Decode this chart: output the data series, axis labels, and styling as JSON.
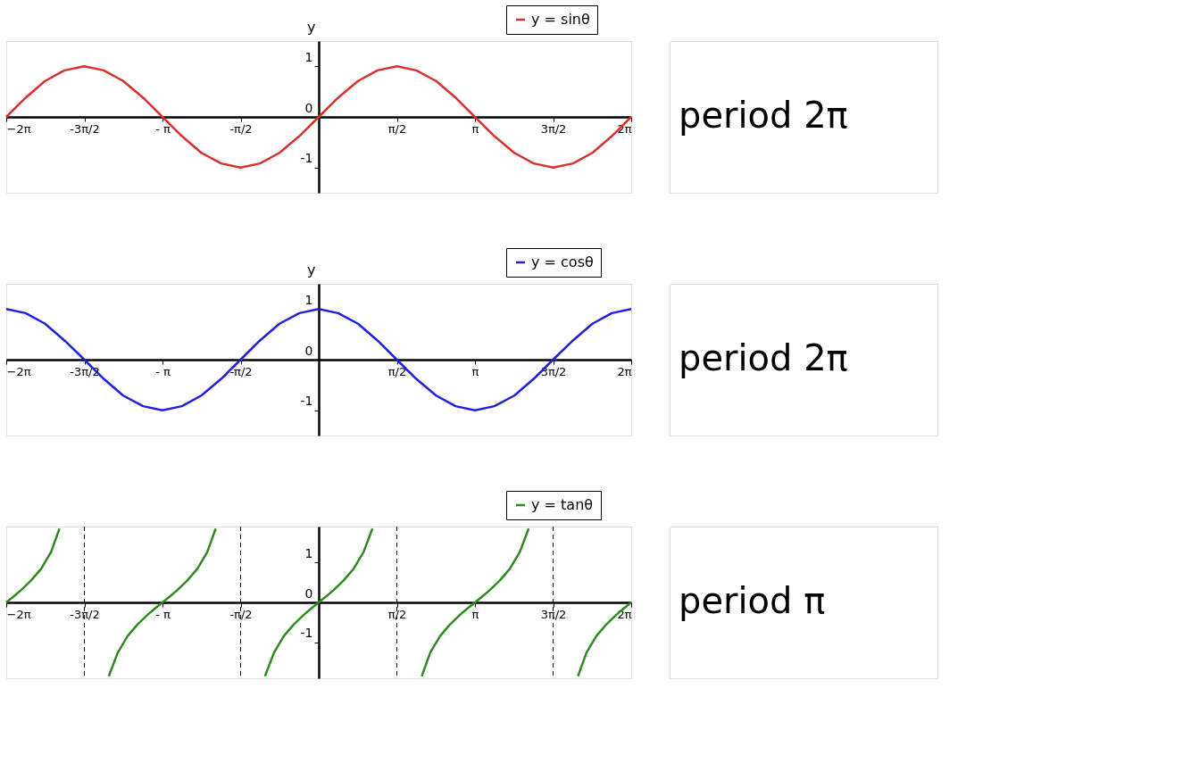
{
  "chart_data": [
    {
      "type": "line",
      "ylabel": "y",
      "legend": "top right",
      "grid": false,
      "marker": "none",
      "line_style": "solid",
      "xlim": [
        -6.28,
        6.28
      ],
      "ylim": [
        -1.5,
        1.5
      ],
      "yticks": [
        -1,
        0,
        1
      ],
      "xticks": [
        {
          "value": -6.28,
          "label": "−2π"
        },
        {
          "value": -4.71,
          "label": "-3π/2"
        },
        {
          "value": -3.14,
          "label": "- π"
        },
        {
          "value": -1.57,
          "label": "-π/2"
        },
        {
          "value": 1.57,
          "label": "π/2"
        },
        {
          "value": 3.14,
          "label": "π"
        },
        {
          "value": 4.71,
          "label": "3π/2"
        },
        {
          "value": 6.28,
          "label": "2π"
        }
      ],
      "x": [
        -6.28,
        -5.89,
        -5.5,
        -5.11,
        -4.71,
        -4.32,
        -3.93,
        -3.53,
        -3.14,
        -2.75,
        -2.36,
        -1.96,
        -1.57,
        -1.18,
        -0.79,
        -0.39,
        0,
        0.39,
        0.79,
        1.18,
        1.57,
        1.96,
        2.36,
        2.75,
        3.14,
        3.53,
        3.93,
        4.32,
        4.71,
        5.11,
        5.5,
        5.89,
        6.28
      ],
      "series": [
        {
          "name": "y = sinθ",
          "color": "#d9312b",
          "values": [
            0,
            0.38,
            0.71,
            0.92,
            1,
            0.92,
            0.71,
            0.38,
            0,
            -0.38,
            -0.71,
            -0.92,
            -1,
            -0.92,
            -0.71,
            -0.38,
            0,
            0.38,
            0.71,
            0.92,
            1,
            0.92,
            0.71,
            0.38,
            0,
            -0.38,
            -0.71,
            -0.92,
            -1,
            -0.92,
            -0.71,
            -0.38,
            0
          ]
        }
      ],
      "annotations": [
        "period  2π"
      ]
    },
    {
      "type": "line",
      "ylabel": "y",
      "legend": "top right",
      "grid": false,
      "marker": "none",
      "line_style": "solid",
      "xlim": [
        -6.28,
        6.28
      ],
      "ylim": [
        -1.5,
        1.5
      ],
      "yticks": [
        -1,
        0,
        1
      ],
      "xticks": [
        {
          "value": -6.28,
          "label": "−2π"
        },
        {
          "value": -4.71,
          "label": "-3π/2"
        },
        {
          "value": -3.14,
          "label": "- π"
        },
        {
          "value": -1.57,
          "label": "-π/2"
        },
        {
          "value": 1.57,
          "label": "π/2"
        },
        {
          "value": 3.14,
          "label": "π"
        },
        {
          "value": 4.71,
          "label": "3π/2"
        },
        {
          "value": 6.28,
          "label": "2π"
        }
      ],
      "x": [
        -6.28,
        -5.89,
        -5.5,
        -5.11,
        -4.71,
        -4.32,
        -3.93,
        -3.53,
        -3.14,
        -2.75,
        -2.36,
        -1.96,
        -1.57,
        -1.18,
        -0.79,
        -0.39,
        0,
        0.39,
        0.79,
        1.18,
        1.57,
        1.96,
        2.36,
        2.75,
        3.14,
        3.53,
        3.93,
        4.32,
        4.71,
        5.11,
        5.5,
        5.89,
        6.28
      ],
      "series": [
        {
          "name": "y = cosθ",
          "color": "#1f1fe0",
          "values": [
            1,
            0.92,
            0.71,
            0.38,
            0,
            -0.38,
            -0.71,
            -0.92,
            -1,
            -0.92,
            -0.71,
            -0.38,
            0,
            0.38,
            0.71,
            0.92,
            1,
            0.92,
            0.71,
            0.38,
            0,
            -0.38,
            -0.71,
            -0.92,
            -1,
            -0.92,
            -0.71,
            -0.38,
            0,
            0.38,
            0.71,
            0.92,
            1
          ]
        }
      ],
      "annotations": [
        "period  2π"
      ]
    },
    {
      "type": "line",
      "legend": "top right",
      "grid": false,
      "marker": "none",
      "line_style": "solid",
      "xlim": [
        -6.28,
        6.28
      ],
      "ylim": [
        -1.9,
        1.9
      ],
      "yticks": [
        -1,
        0,
        1
      ],
      "xticks": [
        {
          "value": -6.28,
          "label": "−2π"
        },
        {
          "value": -4.71,
          "label": "-3π/2"
        },
        {
          "value": -3.14,
          "label": "- π"
        },
        {
          "value": -1.57,
          "label": "-π/2"
        },
        {
          "value": 1.57,
          "label": "π/2"
        },
        {
          "value": 3.14,
          "label": "π"
        },
        {
          "value": 4.71,
          "label": "3π/2"
        },
        {
          "value": 6.28,
          "label": "2π"
        }
      ],
      "x": [
        -6.28,
        -6.13,
        -5.98,
        -5.78,
        -5.58,
        -5.38,
        -5.21,
        -4.71,
        -4.22,
        -4.04,
        -3.84,
        -3.64,
        -3.44,
        -3.29,
        -3.14,
        -2.99,
        -2.84,
        -2.64,
        -2.44,
        -2.24,
        -2.07,
        -1.57,
        -1.08,
        -0.9,
        -0.7,
        -0.5,
        -0.3,
        -0.15,
        0,
        0.15,
        0.3,
        0.5,
        0.7,
        0.9,
        1.08,
        1.57,
        2.07,
        2.24,
        2.44,
        2.64,
        2.84,
        2.99,
        3.14,
        3.29,
        3.44,
        3.64,
        3.84,
        4.04,
        4.22,
        4.71,
        5.21,
        5.38,
        5.58,
        5.78,
        5.98,
        6.13,
        6.28
      ],
      "series": [
        {
          "name": "y = tanθ",
          "color": "#2e8b1e",
          "values": [
            0,
            0.15,
            0.31,
            0.55,
            0.84,
            1.26,
            1.85,
            null,
            -1.85,
            -1.26,
            -0.84,
            -0.55,
            -0.31,
            -0.15,
            0,
            0.15,
            0.31,
            0.55,
            0.84,
            1.26,
            1.85,
            null,
            -1.85,
            -1.26,
            -0.84,
            -0.55,
            -0.31,
            -0.15,
            0,
            0.15,
            0.31,
            0.55,
            0.84,
            1.26,
            1.85,
            null,
            -1.85,
            -1.26,
            -0.84,
            -0.55,
            -0.31,
            -0.15,
            0,
            0.15,
            0.31,
            0.55,
            0.84,
            1.26,
            1.85,
            null,
            -1.85,
            -1.26,
            -0.84,
            -0.55,
            -0.31,
            -0.15,
            0
          ]
        }
      ],
      "ref_lines": [
        {
          "axis": "x",
          "value": -4.71,
          "label": null,
          "color": "#000000",
          "line_style": "dashed"
        },
        {
          "axis": "x",
          "value": -1.57,
          "label": null,
          "color": "#000000",
          "line_style": "dashed"
        },
        {
          "axis": "x",
          "value": 1.57,
          "label": null,
          "color": "#000000",
          "line_style": "dashed"
        },
        {
          "axis": "x",
          "value": 4.71,
          "label": null,
          "color": "#000000",
          "line_style": "dashed"
        }
      ],
      "annotations": [
        "period  π"
      ]
    }
  ]
}
